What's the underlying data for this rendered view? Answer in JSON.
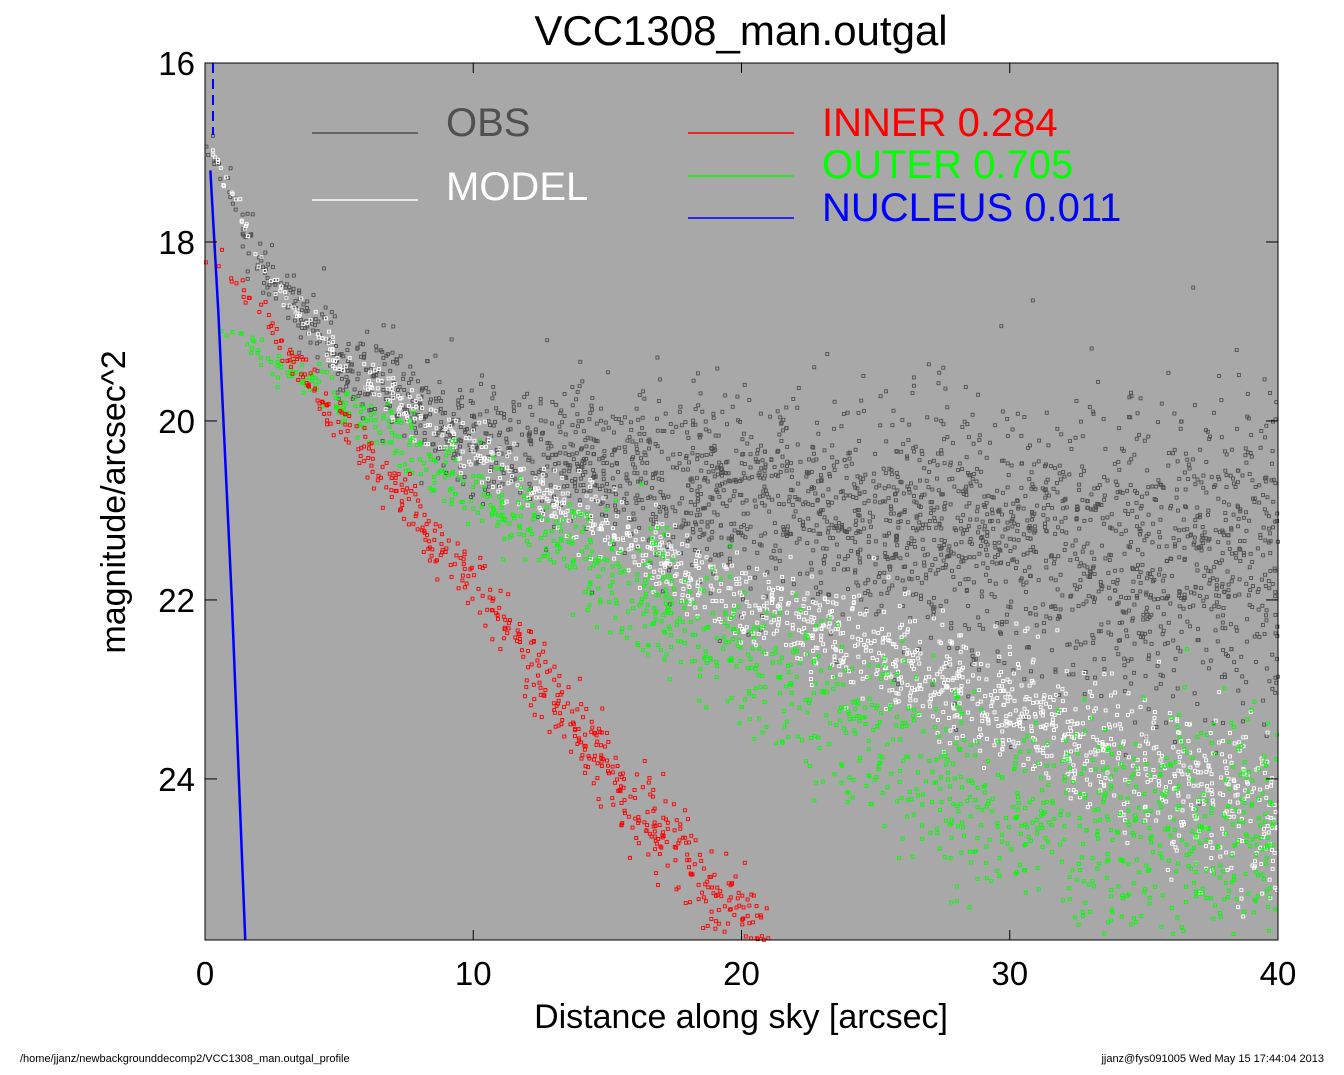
{
  "chart_data": {
    "type": "scatter",
    "title": "VCC1308_man.outgal",
    "xlabel": "Distance along sky [arcsec]",
    "ylabel": "magnitude/arcsec^2",
    "xlim": [
      0,
      40
    ],
    "ylim": [
      25.8,
      16
    ],
    "y_inverted": true,
    "x_ticks": [
      0,
      10,
      20,
      30,
      40
    ],
    "y_ticks": [
      16,
      18,
      20,
      22,
      24
    ],
    "background": "#a8a8a8",
    "legend": [
      {
        "label": "OBS",
        "value": "",
        "color": "#505050"
      },
      {
        "label": "MODEL",
        "value": "",
        "color": "#ffffff"
      },
      {
        "label": "INNER",
        "value": "0.284",
        "color": "#ff0000"
      },
      {
        "label": "OUTER",
        "value": "0.705",
        "color": "#00ff00"
      },
      {
        "label": "NUCLEUS",
        "value": "0.011",
        "color": "#0000ff"
      }
    ],
    "series": [
      {
        "name": "OBS",
        "color": "#505050",
        "curve": {
          "r": [
            0.3,
            2,
            5,
            10,
            20,
            30,
            40
          ],
          "mag": [
            17.0,
            18.2,
            19.3,
            20.2,
            20.8,
            21.3,
            21.6
          ]
        }
      },
      {
        "name": "MODEL",
        "color": "#ffffff",
        "curve": {
          "r": [
            0.3,
            2,
            5,
            10,
            20,
            30,
            40
          ],
          "mag": [
            17.0,
            18.2,
            19.3,
            20.4,
            22.0,
            23.2,
            24.5
          ]
        }
      },
      {
        "name": "INNER",
        "color": "#ff0000",
        "curve": {
          "r": [
            0.5,
            5,
            10,
            15,
            20,
            21
          ],
          "mag": [
            18.2,
            20.0,
            21.8,
            23.9,
            25.6,
            25.8
          ]
        }
      },
      {
        "name": "OUTER",
        "color": "#00ff00",
        "curve": {
          "r": [
            0.5,
            5,
            10,
            20,
            30,
            40
          ],
          "mag": [
            18.9,
            19.8,
            20.8,
            22.6,
            24.4,
            24.8
          ]
        }
      },
      {
        "name": "NUCLEUS",
        "color": "#0000ff",
        "curve": {
          "r": [
            0.2,
            0.5,
            1.0,
            1.5
          ],
          "mag": [
            17.2,
            18.8,
            22.0,
            25.8
          ]
        }
      }
    ]
  },
  "footer": {
    "left": "/home/jjanz/newbackgrounddecomp2/VCC1308_man.outgal_profile",
    "right": "jjanz@fys091005  Wed May 15 17:44:04 2013"
  }
}
